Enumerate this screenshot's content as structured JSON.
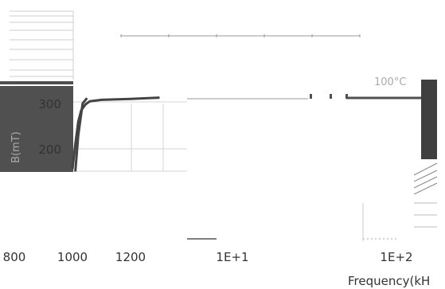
{
  "chart_data": {
    "type": "line",
    "title": "",
    "ylabel": "B(mT)",
    "xlabel": "Frequency(kH",
    "temperature_label": "100°C",
    "x_tick_labels": [
      "800",
      "1000",
      "1200",
      "1E+1",
      "1E+2"
    ],
    "y_tick_labels": [
      "300",
      "200"
    ],
    "grid": true,
    "series": [
      {
        "color": "#444444",
        "points": [
          {
            "x": 1000,
            "y": 155
          },
          {
            "x": 1010,
            "y": 210
          },
          {
            "x": 1020,
            "y": 260
          },
          {
            "x": 1030,
            "y": 285
          },
          {
            "x": 1045,
            "y": 298
          },
          {
            "x": 1060,
            "y": 305
          },
          {
            "x": 1100,
            "y": 308
          },
          {
            "x": 1200,
            "y": 310
          },
          {
            "x": 1300,
            "y": 313
          }
        ]
      }
    ]
  }
}
